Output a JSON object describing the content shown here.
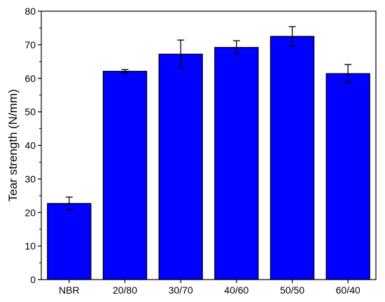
{
  "chart_data": {
    "type": "bar",
    "categories": [
      "NBR",
      "20/80",
      "30/70",
      "40/60",
      "50/50",
      "60/40"
    ],
    "values": [
      22.7,
      62.1,
      67.2,
      69.2,
      72.5,
      61.4
    ],
    "errors": [
      1.9,
      0.5,
      4.2,
      2.0,
      2.9,
      2.7
    ],
    "xlabel": "",
    "ylabel": "Tear strength (N/mm)",
    "ylim": [
      0,
      80
    ],
    "yticks": [
      0,
      10,
      20,
      30,
      40,
      50,
      60,
      70,
      80
    ],
    "grid": false,
    "bar_color": "#0000ff",
    "edge_color": "#000000"
  }
}
